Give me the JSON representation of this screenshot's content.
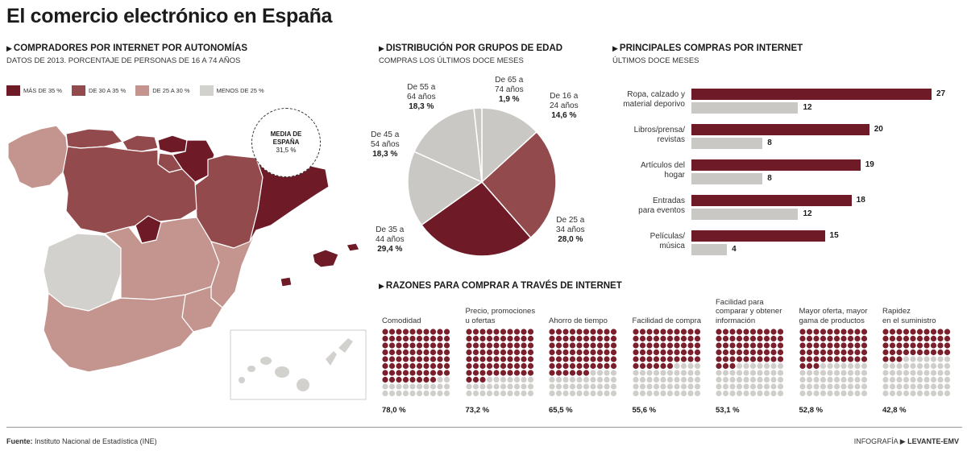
{
  "title": "El comercio electrónico en España",
  "colors": {
    "dark": "#6e1a27",
    "medium": "#924a4d",
    "light": "#c4948e",
    "grey": "#d2d1cd",
    "lightgrey": "#c9c8c4"
  },
  "map": {
    "title": "COMPRADORES POR INTERNET POR AUTONOMÍAS",
    "subtitle": "DATOS DE 2013. PORCENTAJE DE PERSONAS DE 16 A 74 AÑOS",
    "legend": [
      {
        "label": "MÁS DE 35 %",
        "color": "#6e1a27"
      },
      {
        "label": "DE 30 A 35 %",
        "color": "#924a4d"
      },
      {
        "label": "DE 25 A 30 %",
        "color": "#c4948e"
      },
      {
        "label": "MENOS DE 25 %",
        "color": "#d2d1cd"
      }
    ],
    "media_title_1": "MEDIA DE",
    "media_title_2": "ESPAÑA",
    "media_value": "31,5 %"
  },
  "chart_data": [
    {
      "type": "pie",
      "title": "DISTRIBUCIÓN POR GRUPOS DE EDAD",
      "subtitle": "COMPRAS LOS ÚLTIMOS DOCE MESES",
      "slices": [
        {
          "label_1": "De 16 a",
          "label_2": "24 años",
          "value": 14.6,
          "value_text": "14,6 %",
          "color": "#c9c8c4"
        },
        {
          "label_1": "De 25 a",
          "label_2": "34 años",
          "value": 28.0,
          "value_text": "28,0 %",
          "color": "#924a4d"
        },
        {
          "label_1": "De 35 a",
          "label_2": "44 años",
          "value": 29.4,
          "value_text": "29,4 %",
          "color": "#6e1a27"
        },
        {
          "label_1": "De 45 a",
          "label_2": "54 años",
          "value": 18.3,
          "value_text": "18,3 %",
          "color": "#c9c8c4"
        },
        {
          "label_1": "De 55 a",
          "label_2": "64 años",
          "value": 18.3,
          "value_text": "18,3 %",
          "color": "#c9c8c4"
        },
        {
          "label_1": "De 65 a",
          "label_2": "74 años",
          "value": 1.9,
          "value_text": "1,9 %",
          "color": "#c9c8c4"
        }
      ]
    },
    {
      "type": "bar",
      "title": "PRINCIPALES COMPRAS POR INTERNET",
      "subtitle": "ÚLTIMOS DOCE MESES",
      "categories": [
        [
          "Ropa, calzado y",
          "material deporivo"
        ],
        [
          "Libros/prensa/",
          "revistas"
        ],
        [
          "Artículos del",
          "hogar"
        ],
        [
          "Entradas",
          "para eventos"
        ],
        [
          "Películas/",
          "música"
        ]
      ],
      "series": [
        {
          "values": [
            27,
            20,
            19,
            18,
            15
          ],
          "color": "#6e1a27"
        },
        {
          "values": [
            12,
            8,
            8,
            12,
            4
          ],
          "color": "#c9c8c4"
        }
      ],
      "xlim": [
        0,
        27
      ]
    },
    {
      "type": "bar",
      "title": "RAZONES PARA COMPRAR A TRAVÉS DE INTERNET",
      "categories": [
        [
          "",
          "Comodidad"
        ],
        [
          "Precio, promociones",
          "u ofertas"
        ],
        [
          "",
          "Ahorro de tiempo"
        ],
        [
          "",
          "Facilidad de compra"
        ],
        [
          "Facilidad para",
          "comparar y obtener",
          "información"
        ],
        [
          "Mayor oferta, mayor",
          "gama de productos"
        ],
        [
          "Rapidez",
          "en el suministro"
        ]
      ],
      "values": [
        78.0,
        73.2,
        65.5,
        55.6,
        53.1,
        52.8,
        42.8
      ],
      "value_texts": [
        "78,0 %",
        "73,2 %",
        "65,5 %",
        "55,6 %",
        "53,1 %",
        "52,8 %",
        "42,8 %"
      ],
      "ylim": [
        0,
        100
      ]
    }
  ],
  "footer": {
    "source_label": "Fuente:",
    "source_text": " Instituto Nacional de Estadística (INE)",
    "credit_1": "INFOGRAFÍA",
    "credit_2": "LEVANTE-EMV"
  }
}
